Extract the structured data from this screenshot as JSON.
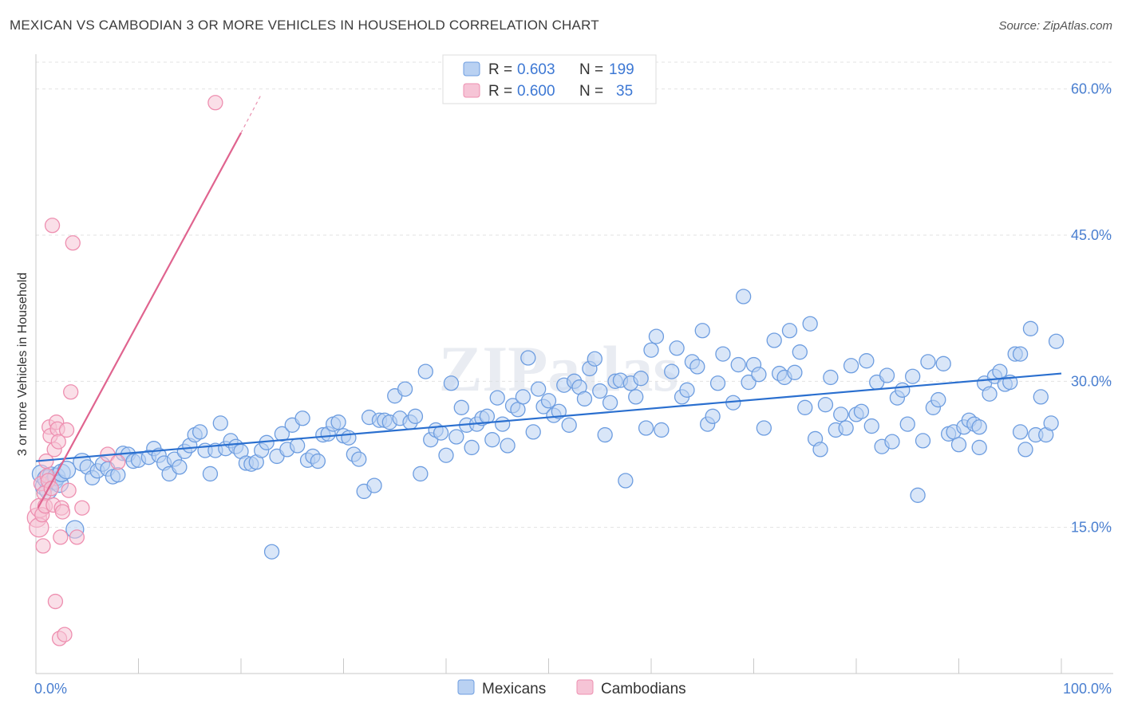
{
  "title": "MEXICAN VS CAMBODIAN 3 OR MORE VEHICLES IN HOUSEHOLD CORRELATION CHART",
  "source": "Source: ZipAtlas.com",
  "watermark": "ZIPatlas",
  "colors": {
    "mexicans": "#6d9de0",
    "mexicans_fill": "#b9d1f2",
    "mexicans_line": "#2a6fcf",
    "cambodians": "#ee8fb0",
    "cambodians_fill": "#f6c4d6",
    "cambodians_line": "#e0648f",
    "accent_text": "#3d78d4"
  },
  "legend_top": {
    "rows": [
      {
        "r_label": "R =",
        "r_value": "0.603",
        "n_label": "N =",
        "n_value": "199"
      },
      {
        "r_label": "R =",
        "r_value": "0.600",
        "n_label": "N =",
        "n_value": "35"
      }
    ]
  },
  "legend_bottom": [
    "Mexicans",
    "Cambodians"
  ],
  "chart_data": {
    "type": "scatter",
    "title": "MEXICAN VS CAMBODIAN 3 OR MORE VEHICLES IN HOUSEHOLD CORRELATION CHART",
    "xlabel": "",
    "ylabel": "3 or more Vehicles in Household",
    "xlim": [
      0,
      100
    ],
    "ylim": [
      0,
      63
    ],
    "x_tick_labels": [
      "0.0%",
      "100.0%"
    ],
    "y_ticks": [
      15,
      30,
      45,
      60
    ],
    "y_tick_labels": [
      "15.0%",
      "30.0%",
      "45.0%",
      "60.0%"
    ],
    "grid": true,
    "legend_position": "bottom",
    "series": [
      {
        "name": "Mexicans",
        "r": 0.603,
        "n": 199,
        "trend": {
          "x": [
            0,
            100
          ],
          "y": [
            21.8,
            30.8
          ]
        },
        "points": [
          [
            0.5,
            20.5
          ],
          [
            0.8,
            19.2
          ],
          [
            1.0,
            20.0
          ],
          [
            1.2,
            18.8
          ],
          [
            1.5,
            20.3
          ],
          [
            1.8,
            19.8
          ],
          [
            2.0,
            20.2
          ],
          [
            2.3,
            19.5
          ],
          [
            2.5,
            20.6
          ],
          [
            3.0,
            20.9
          ],
          [
            3.8,
            14.8
          ],
          [
            4.5,
            21.7
          ],
          [
            5.0,
            21.2
          ],
          [
            5.5,
            20.1
          ],
          [
            6.0,
            20.8
          ],
          [
            6.5,
            21.5
          ],
          [
            7.0,
            21.0
          ],
          [
            7.5,
            20.2
          ],
          [
            8.0,
            20.4
          ],
          [
            8.5,
            22.6
          ],
          [
            9.0,
            22.5
          ],
          [
            9.5,
            21.8
          ],
          [
            10.0,
            21.9
          ],
          [
            11.0,
            22.2
          ],
          [
            11.5,
            23.1
          ],
          [
            12.0,
            22.4
          ],
          [
            12.5,
            21.6
          ],
          [
            13.0,
            20.5
          ],
          [
            13.5,
            22.0
          ],
          [
            14.0,
            21.2
          ],
          [
            14.5,
            22.8
          ],
          [
            15.0,
            23.4
          ],
          [
            15.5,
            24.5
          ],
          [
            16.0,
            24.8
          ],
          [
            16.5,
            22.9
          ],
          [
            17.0,
            20.5
          ],
          [
            17.5,
            22.9
          ],
          [
            18.0,
            25.7
          ],
          [
            18.5,
            23.1
          ],
          [
            19.0,
            23.9
          ],
          [
            19.5,
            23.3
          ],
          [
            20.0,
            22.8
          ],
          [
            20.5,
            21.6
          ],
          [
            21.0,
            21.5
          ],
          [
            21.5,
            21.7
          ],
          [
            22.0,
            22.9
          ],
          [
            22.5,
            23.7
          ],
          [
            23.0,
            12.5
          ],
          [
            23.5,
            22.3
          ],
          [
            24.0,
            24.6
          ],
          [
            24.5,
            23.0
          ],
          [
            25.0,
            25.5
          ],
          [
            25.5,
            23.4
          ],
          [
            26.0,
            26.2
          ],
          [
            26.5,
            21.9
          ],
          [
            27.0,
            22.3
          ],
          [
            27.5,
            21.8
          ],
          [
            28.0,
            24.5
          ],
          [
            28.5,
            24.6
          ],
          [
            29.0,
            25.6
          ],
          [
            29.5,
            25.8
          ],
          [
            30.0,
            24.4
          ],
          [
            30.5,
            24.2
          ],
          [
            31.0,
            22.5
          ],
          [
            31.5,
            22.0
          ],
          [
            32.0,
            18.7
          ],
          [
            32.5,
            26.3
          ],
          [
            33.0,
            19.3
          ],
          [
            33.5,
            26.0
          ],
          [
            34.0,
            26.0
          ],
          [
            34.5,
            25.8
          ],
          [
            35.0,
            28.5
          ],
          [
            35.5,
            26.2
          ],
          [
            36.0,
            29.2
          ],
          [
            36.5,
            25.8
          ],
          [
            37.0,
            26.4
          ],
          [
            37.5,
            20.5
          ],
          [
            38.0,
            31.0
          ],
          [
            38.5,
            24.0
          ],
          [
            39.0,
            25.0
          ],
          [
            39.5,
            24.7
          ],
          [
            40.0,
            22.4
          ],
          [
            40.5,
            29.8
          ],
          [
            41.0,
            24.3
          ],
          [
            41.5,
            27.3
          ],
          [
            42.0,
            25.5
          ],
          [
            42.5,
            23.2
          ],
          [
            43.0,
            25.6
          ],
          [
            43.5,
            26.2
          ],
          [
            44.0,
            26.4
          ],
          [
            44.5,
            24.0
          ],
          [
            45.0,
            28.3
          ],
          [
            45.5,
            25.6
          ],
          [
            46.0,
            23.4
          ],
          [
            46.5,
            27.5
          ],
          [
            47.0,
            27.1
          ],
          [
            47.5,
            28.4
          ],
          [
            48.0,
            32.4
          ],
          [
            48.5,
            24.8
          ],
          [
            49.0,
            29.2
          ],
          [
            49.5,
            27.4
          ],
          [
            50.0,
            28.0
          ],
          [
            50.5,
            26.5
          ],
          [
            51.0,
            26.9
          ],
          [
            51.5,
            29.6
          ],
          [
            52.0,
            25.5
          ],
          [
            52.5,
            30.0
          ],
          [
            53.0,
            29.4
          ],
          [
            53.5,
            28.2
          ],
          [
            54.0,
            31.3
          ],
          [
            54.5,
            32.3
          ],
          [
            55.0,
            29.0
          ],
          [
            55.5,
            24.5
          ],
          [
            56.0,
            27.8
          ],
          [
            56.5,
            30.0
          ],
          [
            57.0,
            30.1
          ],
          [
            57.5,
            19.8
          ],
          [
            58.0,
            29.8
          ],
          [
            58.5,
            28.4
          ],
          [
            59.0,
            30.3
          ],
          [
            59.5,
            25.2
          ],
          [
            60.0,
            33.2
          ],
          [
            60.5,
            34.6
          ],
          [
            61.0,
            25.0
          ],
          [
            62.0,
            31.0
          ],
          [
            62.5,
            33.4
          ],
          [
            63.0,
            28.4
          ],
          [
            63.5,
            29.1
          ],
          [
            64.0,
            32.0
          ],
          [
            64.5,
            31.5
          ],
          [
            65.0,
            35.2
          ],
          [
            65.5,
            25.6
          ],
          [
            66.0,
            26.4
          ],
          [
            66.5,
            29.8
          ],
          [
            67.0,
            32.8
          ],
          [
            68.0,
            27.8
          ],
          [
            68.5,
            31.7
          ],
          [
            69.0,
            38.7
          ],
          [
            69.5,
            29.9
          ],
          [
            70.0,
            31.7
          ],
          [
            70.5,
            30.7
          ],
          [
            71.0,
            25.2
          ],
          [
            72.0,
            34.2
          ],
          [
            72.5,
            30.8
          ],
          [
            73.0,
            30.4
          ],
          [
            73.5,
            35.2
          ],
          [
            74.0,
            30.9
          ],
          [
            74.5,
            33.0
          ],
          [
            75.0,
            27.3
          ],
          [
            75.5,
            35.9
          ],
          [
            76.0,
            24.1
          ],
          [
            76.5,
            23.0
          ],
          [
            77.0,
            27.6
          ],
          [
            77.5,
            30.4
          ],
          [
            78.0,
            25.0
          ],
          [
            78.5,
            26.6
          ],
          [
            79.0,
            25.2
          ],
          [
            79.5,
            31.6
          ],
          [
            80.0,
            26.6
          ],
          [
            80.5,
            26.9
          ],
          [
            81.0,
            32.1
          ],
          [
            81.5,
            25.4
          ],
          [
            82.0,
            29.9
          ],
          [
            82.5,
            23.3
          ],
          [
            83.0,
            30.6
          ],
          [
            83.5,
            23.8
          ],
          [
            84.0,
            28.3
          ],
          [
            84.5,
            29.1
          ],
          [
            85.0,
            25.6
          ],
          [
            85.5,
            30.5
          ],
          [
            86.0,
            18.3
          ],
          [
            86.5,
            23.9
          ],
          [
            87.0,
            32.0
          ],
          [
            87.5,
            27.3
          ],
          [
            88.0,
            28.1
          ],
          [
            88.5,
            31.8
          ],
          [
            89.0,
            24.6
          ],
          [
            89.5,
            24.8
          ],
          [
            90.0,
            23.5
          ],
          [
            90.5,
            25.3
          ],
          [
            91.0,
            26.0
          ],
          [
            91.5,
            25.6
          ],
          [
            92.0,
            23.2
          ],
          [
            92.5,
            29.8
          ],
          [
            93.0,
            28.7
          ],
          [
            93.5,
            30.5
          ],
          [
            94.0,
            31.0
          ],
          [
            94.5,
            29.7
          ],
          [
            95.0,
            29.9
          ],
          [
            95.5,
            32.8
          ],
          [
            96.0,
            24.8
          ],
          [
            96.5,
            23.0
          ],
          [
            97.0,
            35.4
          ],
          [
            97.5,
            24.5
          ],
          [
            98.0,
            28.4
          ],
          [
            98.5,
            24.5
          ],
          [
            99.0,
            25.7
          ],
          [
            99.5,
            34.1
          ],
          [
            96.0,
            32.8
          ],
          [
            92.0,
            25.3
          ]
        ]
      },
      {
        "name": "Cambodians",
        "r": 0.6,
        "n": 35,
        "trend": {
          "x": [
            0.2,
            20.0
          ],
          "y": [
            17.0,
            55.5
          ]
        },
        "trend_dashed": {
          "x": [
            20.0,
            22.0
          ],
          "y": [
            55.5,
            59.5
          ]
        },
        "points": [
          [
            0.1,
            16.0
          ],
          [
            0.3,
            15.0
          ],
          [
            0.4,
            17.0
          ],
          [
            0.5,
            19.5
          ],
          [
            0.6,
            16.3
          ],
          [
            0.7,
            13.1
          ],
          [
            0.8,
            18.5
          ],
          [
            0.9,
            17.2
          ],
          [
            1.0,
            21.8
          ],
          [
            1.1,
            20.3
          ],
          [
            1.2,
            19.8
          ],
          [
            1.3,
            25.3
          ],
          [
            1.4,
            24.4
          ],
          [
            1.5,
            19.0
          ],
          [
            1.6,
            46.0
          ],
          [
            1.7,
            17.3
          ],
          [
            1.8,
            23.0
          ],
          [
            1.9,
            7.4
          ],
          [
            2.0,
            25.8
          ],
          [
            2.1,
            25.1
          ],
          [
            2.2,
            23.8
          ],
          [
            2.3,
            3.6
          ],
          [
            2.4,
            14.0
          ],
          [
            2.5,
            17.0
          ],
          [
            2.6,
            16.6
          ],
          [
            2.8,
            4.0
          ],
          [
            3.0,
            25.0
          ],
          [
            3.2,
            18.8
          ],
          [
            3.4,
            28.9
          ],
          [
            3.6,
            44.2
          ],
          [
            4.0,
            14.0
          ],
          [
            4.5,
            17.0
          ],
          [
            7.0,
            22.5
          ],
          [
            8.0,
            21.7
          ],
          [
            17.5,
            58.6
          ]
        ]
      }
    ]
  }
}
